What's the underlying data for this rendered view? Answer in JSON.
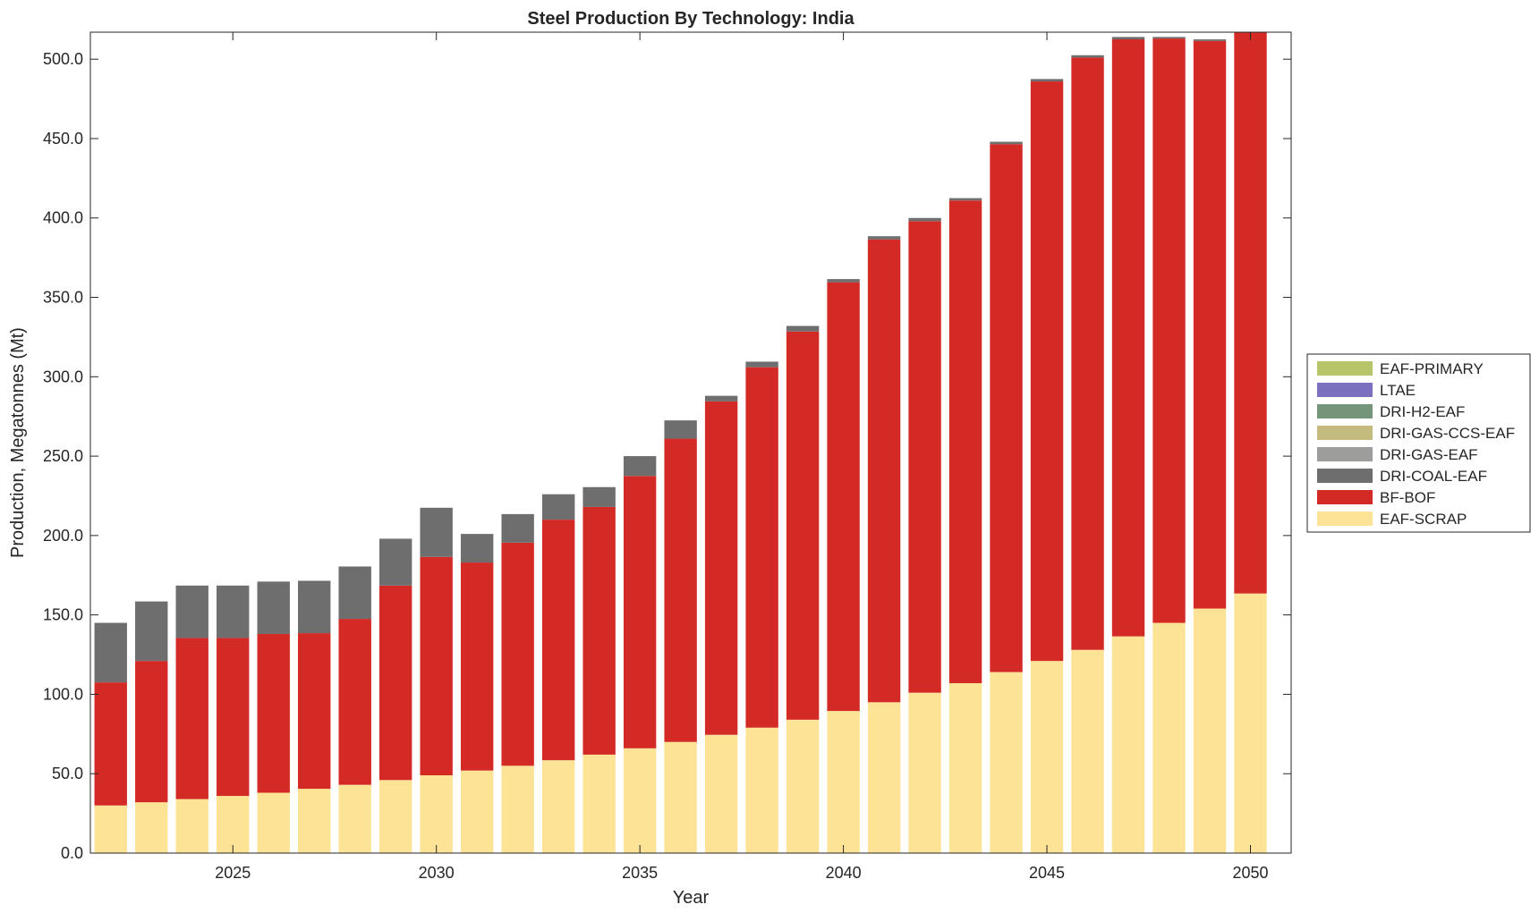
{
  "chart_data": {
    "type": "bar",
    "stacked": true,
    "title": "Steel Production By Technology: India",
    "xlabel": "Year",
    "ylabel": "Production, Megatonnes (Mt)",
    "ylim": [
      0,
      517
    ],
    "xlim": [
      2021.5,
      2051.0
    ],
    "grid": false,
    "legend_placement": "right",
    "x": [
      2022,
      2023,
      2024,
      2025,
      2026,
      2027,
      2028,
      2029,
      2030,
      2031,
      2032,
      2033,
      2034,
      2035,
      2036,
      2037,
      2038,
      2039,
      2040,
      2041,
      2042,
      2043,
      2044,
      2045,
      2046,
      2047,
      2048,
      2049,
      2050
    ],
    "x_ticks": [
      2025,
      2030,
      2035,
      2040,
      2045,
      2050
    ],
    "x_tick_labels": [
      "2025",
      "2030",
      "2035",
      "2040",
      "2045",
      "2050"
    ],
    "y_ticks": [
      0,
      50,
      100,
      150,
      200,
      250,
      300,
      350,
      400,
      450,
      500
    ],
    "y_tick_labels": [
      "0.0",
      "50.0",
      "100.0",
      "150.0",
      "200.0",
      "250.0",
      "300.0",
      "350.0",
      "400.0",
      "450.0",
      "500.0"
    ],
    "legend_order": [
      "EAF-PRIMARY",
      "LTAE",
      "DRI-H2-EAF",
      "DRI-GAS-CCS-EAF",
      "DRI-GAS-EAF",
      "DRI-COAL-EAF",
      "BF-BOF",
      "EAF-SCRAP"
    ],
    "series": [
      {
        "name": "EAF-SCRAP",
        "color": "#fde396",
        "values": [
          30,
          32,
          34,
          36,
          38,
          40.5,
          43,
          46,
          49,
          52,
          55,
          58.5,
          62,
          66,
          70,
          74.5,
          79,
          84,
          89.5,
          95,
          101,
          107,
          114,
          121,
          128,
          136.5,
          145,
          154,
          163.5
        ]
      },
      {
        "name": "BF-BOF",
        "color": "#d42a26",
        "values": [
          77.5,
          89,
          101.5,
          99.5,
          100,
          98,
          104.5,
          122.5,
          137.5,
          131,
          140.5,
          151.5,
          156,
          171.5,
          191,
          210,
          227,
          244.5,
          270,
          291.5,
          297,
          304,
          332.5,
          365,
          373,
          376,
          368,
          357.5,
          357
        ]
      },
      {
        "name": "DRI-COAL-EAF",
        "color": "#6e6e6e",
        "values": [
          37.5,
          37.5,
          33,
          33,
          33,
          33,
          33,
          29.5,
          31,
          18,
          18,
          16,
          12.5,
          12.5,
          11.5,
          3.5,
          3.5,
          3.5,
          2,
          2,
          2,
          1.5,
          1.5,
          1.5,
          1.5,
          1.5,
          1,
          1,
          0
        ]
      },
      {
        "name": "DRI-GAS-EAF",
        "color": "#9d9d9b",
        "values": [
          0,
          0,
          0,
          0,
          0,
          0,
          0,
          0,
          0,
          0,
          0,
          0,
          0,
          0,
          0,
          0,
          0,
          0,
          0,
          0,
          0,
          0,
          0,
          0,
          0,
          0,
          0,
          0,
          0
        ]
      },
      {
        "name": "DRI-GAS-CCS-EAF",
        "color": "#c4bb7f",
        "values": [
          0,
          0,
          0,
          0,
          0,
          0,
          0,
          0,
          0,
          0,
          0,
          0,
          0,
          0,
          0,
          0,
          0,
          0,
          0,
          0,
          0,
          0,
          0,
          0,
          0,
          0,
          0,
          0,
          0
        ]
      },
      {
        "name": "DRI-H2-EAF",
        "color": "#74957a",
        "values": [
          0,
          0,
          0,
          0,
          0,
          0,
          0,
          0,
          0,
          0,
          0,
          0,
          0,
          0,
          0,
          0,
          0,
          0,
          0,
          0,
          0,
          0,
          0,
          0,
          0,
          0,
          0,
          0,
          0
        ]
      },
      {
        "name": "LTAE",
        "color": "#7b6fbf",
        "values": [
          0,
          0,
          0,
          0,
          0,
          0,
          0,
          0,
          0,
          0,
          0,
          0,
          0,
          0,
          0,
          0,
          0,
          0,
          0,
          0,
          0,
          0,
          0,
          0,
          0,
          0,
          0,
          0,
          0
        ]
      },
      {
        "name": "EAF-PRIMARY",
        "color": "#b8c46a",
        "values": [
          0,
          0,
          0,
          0,
          0,
          0,
          0,
          0,
          0,
          0,
          0,
          0,
          0,
          0,
          0,
          0,
          0,
          0,
          0,
          0,
          0,
          0,
          0,
          0,
          0,
          0,
          0,
          0,
          0
        ]
      }
    ]
  }
}
